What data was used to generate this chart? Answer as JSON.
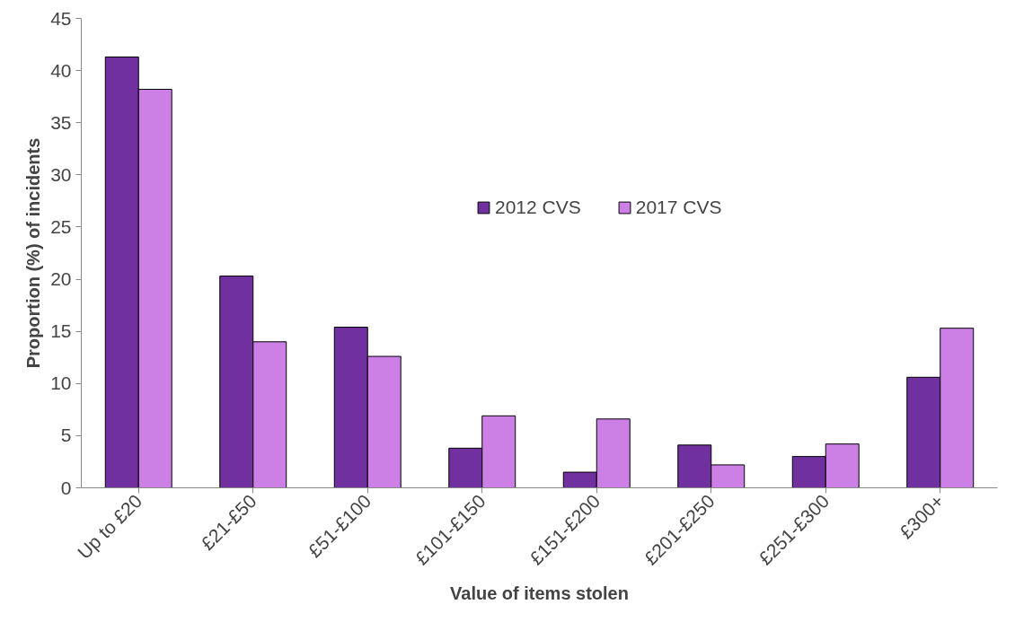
{
  "chart_data": {
    "type": "bar",
    "xlabel": "Value of items stolen",
    "ylabel": "Proportion (%) of incidents",
    "categories": [
      "Up to £20",
      "£21-£50",
      "£51-£100",
      "£101-£150",
      "£151-£200",
      "£201-£250",
      "£251-£300",
      "£300+"
    ],
    "series": [
      {
        "name": "2012 CVS",
        "color": "#7030a0",
        "values": [
          41.3,
          20.3,
          15.4,
          3.8,
          1.5,
          4.1,
          3.0,
          10.6
        ]
      },
      {
        "name": "2017 CVS",
        "color": "#cc80e6",
        "values": [
          38.2,
          14.0,
          12.6,
          6.9,
          6.6,
          2.2,
          4.2,
          15.3
        ]
      }
    ],
    "ylim": [
      0,
      45
    ],
    "yticks": [
      0,
      5,
      10,
      15,
      20,
      25,
      30,
      35,
      40,
      45
    ],
    "grid": false,
    "legend": "top right"
  }
}
